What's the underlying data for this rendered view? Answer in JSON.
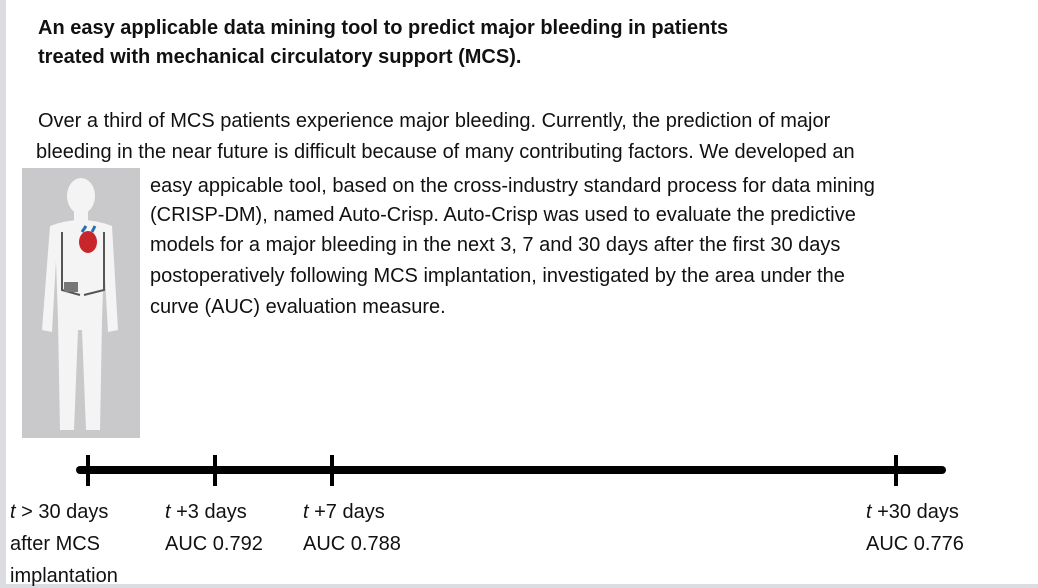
{
  "header": {
    "title_lines": [
      "An easy applicable data mining tool to predict major bleeding in patients",
      "treated with mechanical circulatory support (MCS)."
    ]
  },
  "body": {
    "lines": [
      "Over a third of MCS patients experience major bleeding. Currently, the prediction of major",
      "bleeding in the near future is difficult because of many contributing factors. We developed an",
      "easy appicable tool, based on the cross-industry standard process for data mining",
      "(CRISP-DM), named Auto-Crisp. Auto-Crisp was used to evaluate the predictive",
      "models for a major bleeding in the next 3, 7 and 30 days after the first 30 days",
      "postoperatively following MCS implantation, investigated by the area under the",
      "curve (AUC) evaluation measure."
    ]
  },
  "timeline": {
    "points": [
      {
        "var": "t",
        "time": " > 30 days",
        "lines": [
          "after MCS",
          "implantation"
        ]
      },
      {
        "var": "t",
        "time": " +3 days",
        "lines": [
          "AUC 0.792"
        ]
      },
      {
        "var": "t",
        "time": " +7 days",
        "lines": [
          "AUC 0.788"
        ]
      },
      {
        "var": "t",
        "time": " +30 days",
        "lines": [
          "AUC 0.776"
        ]
      }
    ]
  }
}
